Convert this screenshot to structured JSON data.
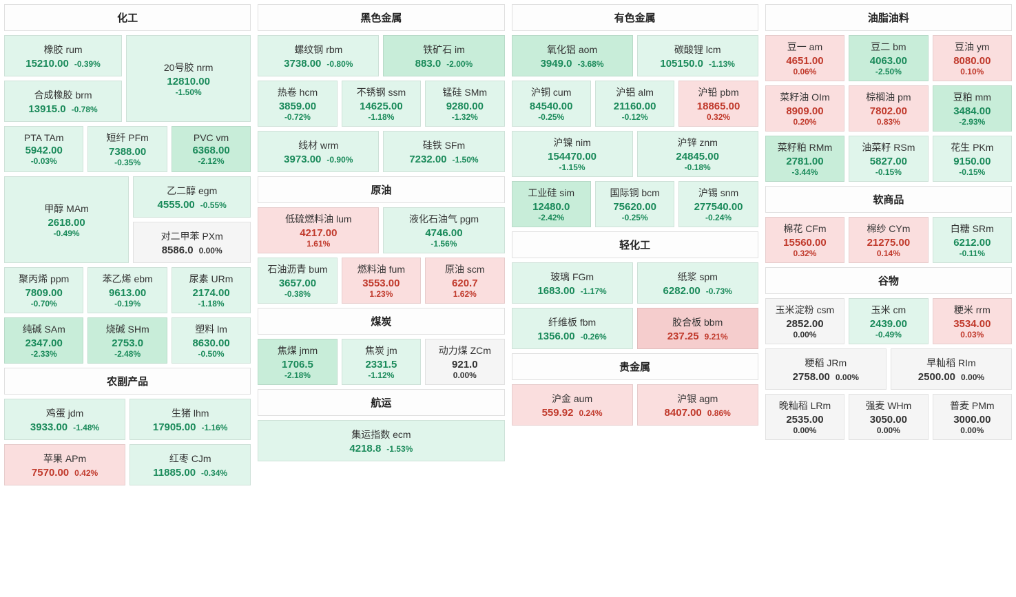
{
  "colors": {
    "down_bg": "#e0f5eb",
    "down_strong_bg": "#c8edd9",
    "up_bg": "#fadede",
    "up_strong_bg": "#f5cdcd",
    "flat_bg": "#f5f5f5",
    "down_text": "#1a8a5a",
    "up_text": "#c0392b",
    "flat_text": "#333333"
  },
  "columns": [
    {
      "sections": [
        {
          "title": "化工",
          "rows": [
            {
              "cells": [
                {
                  "type": "stack",
                  "cells": [
                    {
                      "name": "橡胶 rum",
                      "price": "15210.00",
                      "pct": "-0.39%",
                      "dir": "down",
                      "layout": "inline"
                    },
                    {
                      "name": "合成橡胶 brm",
                      "price": "13915.0",
                      "pct": "-0.78%",
                      "dir": "down",
                      "layout": "inline"
                    }
                  ]
                },
                {
                  "name": "20号胶 nrm",
                  "price": "12810.00",
                  "pct": "-1.50%",
                  "dir": "down",
                  "layout": "stacked"
                }
              ]
            },
            {
              "cells": [
                {
                  "name": "PTA TAm",
                  "price": "5942.00",
                  "pct": "-0.03%",
                  "dir": "down",
                  "layout": "stacked"
                },
                {
                  "name": "短纤 PFm",
                  "price": "7388.00",
                  "pct": "-0.35%",
                  "dir": "down",
                  "layout": "stacked"
                },
                {
                  "name": "PVC vm",
                  "price": "6368.00",
                  "pct": "-2.12%",
                  "dir": "down-strong",
                  "layout": "stacked"
                }
              ]
            },
            {
              "cells": [
                {
                  "name": "甲醇 MAm",
                  "price": "2618.00",
                  "pct": "-0.49%",
                  "dir": "down",
                  "layout": "stacked"
                },
                {
                  "type": "stack",
                  "cells": [
                    {
                      "name": "乙二醇 egm",
                      "price": "4555.00",
                      "pct": "-0.55%",
                      "dir": "down",
                      "layout": "inline"
                    },
                    {
                      "name": "对二甲苯 PXm",
                      "price": "8586.0",
                      "pct": "0.00%",
                      "dir": "flat",
                      "layout": "inline"
                    }
                  ]
                }
              ]
            },
            {
              "cells": [
                {
                  "name": "聚丙烯 ppm",
                  "price": "7809.00",
                  "pct": "-0.70%",
                  "dir": "down",
                  "layout": "stacked"
                },
                {
                  "name": "苯乙烯 ebm",
                  "price": "9613.00",
                  "pct": "-0.19%",
                  "dir": "down",
                  "layout": "stacked"
                },
                {
                  "name": "尿素 URm",
                  "price": "2174.00",
                  "pct": "-1.18%",
                  "dir": "down",
                  "layout": "stacked"
                }
              ]
            },
            {
              "cells": [
                {
                  "name": "纯碱 SAm",
                  "price": "2347.00",
                  "pct": "-2.33%",
                  "dir": "down-strong",
                  "layout": "stacked"
                },
                {
                  "name": "烧碱 SHm",
                  "price": "2753.0",
                  "pct": "-2.48%",
                  "dir": "down-strong",
                  "layout": "stacked"
                },
                {
                  "name": "塑料 lm",
                  "price": "8630.00",
                  "pct": "-0.50%",
                  "dir": "down",
                  "layout": "stacked"
                }
              ]
            }
          ]
        },
        {
          "title": "农副产品",
          "rows": [
            {
              "cells": [
                {
                  "name": "鸡蛋 jdm",
                  "price": "3933.00",
                  "pct": "-1.48%",
                  "dir": "down",
                  "layout": "inline"
                },
                {
                  "name": "生猪 lhm",
                  "price": "17905.00",
                  "pct": "-1.16%",
                  "dir": "down",
                  "layout": "inline"
                }
              ]
            },
            {
              "cells": [
                {
                  "name": "苹果 APm",
                  "price": "7570.00",
                  "pct": "0.42%",
                  "dir": "up",
                  "layout": "inline"
                },
                {
                  "name": "红枣 CJm",
                  "price": "11885.00",
                  "pct": "-0.34%",
                  "dir": "down",
                  "layout": "inline"
                }
              ]
            }
          ]
        }
      ]
    },
    {
      "sections": [
        {
          "title": "黑色金属",
          "rows": [
            {
              "cells": [
                {
                  "name": "螺纹钢 rbm",
                  "price": "3738.00",
                  "pct": "-0.80%",
                  "dir": "down",
                  "layout": "inline"
                },
                {
                  "name": "铁矿石 im",
                  "price": "883.0",
                  "pct": "-2.00%",
                  "dir": "down-strong",
                  "layout": "inline"
                }
              ]
            },
            {
              "cells": [
                {
                  "name": "热卷 hcm",
                  "price": "3859.00",
                  "pct": "-0.72%",
                  "dir": "down",
                  "layout": "stacked"
                },
                {
                  "name": "不锈钢 ssm",
                  "price": "14625.00",
                  "pct": "-1.18%",
                  "dir": "down",
                  "layout": "stacked"
                },
                {
                  "name": "锰硅 SMm",
                  "price": "9280.00",
                  "pct": "-1.32%",
                  "dir": "down",
                  "layout": "stacked"
                }
              ]
            },
            {
              "cells": [
                {
                  "name": "线材 wrm",
                  "price": "3973.00",
                  "pct": "-0.90%",
                  "dir": "down",
                  "layout": "inline"
                },
                {
                  "name": "硅铁 SFm",
                  "price": "7232.00",
                  "pct": "-1.50%",
                  "dir": "down",
                  "layout": "inline"
                }
              ]
            }
          ]
        },
        {
          "title": "原油",
          "rows": [
            {
              "cells": [
                {
                  "name": "低硫燃料油 lum",
                  "price": "4217.00",
                  "pct": "1.61%",
                  "dir": "up",
                  "layout": "stacked"
                },
                {
                  "name": "液化石油气 pgm",
                  "price": "4746.00",
                  "pct": "-1.56%",
                  "dir": "down",
                  "layout": "stacked"
                }
              ]
            },
            {
              "cells": [
                {
                  "name": "石油沥青 bum",
                  "price": "3657.00",
                  "pct": "-0.38%",
                  "dir": "down",
                  "layout": "stacked"
                },
                {
                  "name": "燃料油 fum",
                  "price": "3553.00",
                  "pct": "1.23%",
                  "dir": "up",
                  "layout": "stacked"
                },
                {
                  "name": "原油 scm",
                  "price": "620.7",
                  "pct": "1.62%",
                  "dir": "up",
                  "layout": "stacked"
                }
              ]
            }
          ]
        },
        {
          "title": "煤炭",
          "rows": [
            {
              "cells": [
                {
                  "name": "焦煤 jmm",
                  "price": "1706.5",
                  "pct": "-2.18%",
                  "dir": "down-strong",
                  "layout": "stacked"
                },
                {
                  "name": "焦炭 jm",
                  "price": "2331.5",
                  "pct": "-1.12%",
                  "dir": "down",
                  "layout": "stacked"
                },
                {
                  "name": "动力煤 ZCm",
                  "price": "921.0",
                  "pct": "0.00%",
                  "dir": "flat",
                  "layout": "stacked"
                }
              ]
            }
          ]
        },
        {
          "title": "航运",
          "rows": [
            {
              "cells": [
                {
                  "name": "集运指数 ecm",
                  "price": "4218.8",
                  "pct": "-1.53%",
                  "dir": "down",
                  "layout": "inline"
                }
              ]
            }
          ]
        }
      ]
    },
    {
      "sections": [
        {
          "title": "有色金属",
          "rows": [
            {
              "cells": [
                {
                  "name": "氧化铝 aom",
                  "price": "3949.0",
                  "pct": "-3.68%",
                  "dir": "down-strong",
                  "layout": "inline"
                },
                {
                  "name": "碳酸锂 lcm",
                  "price": "105150.0",
                  "pct": "-1.13%",
                  "dir": "down",
                  "layout": "inline"
                }
              ]
            },
            {
              "cells": [
                {
                  "name": "沪铜 cum",
                  "price": "84540.00",
                  "pct": "-0.25%",
                  "dir": "down",
                  "layout": "stacked"
                },
                {
                  "name": "沪铝 alm",
                  "price": "21160.00",
                  "pct": "-0.12%",
                  "dir": "down",
                  "layout": "stacked"
                },
                {
                  "name": "沪铅 pbm",
                  "price": "18865.00",
                  "pct": "0.32%",
                  "dir": "up",
                  "layout": "stacked"
                }
              ]
            },
            {
              "cells": [
                {
                  "name": "沪镍 nim",
                  "price": "154470.00",
                  "pct": "-1.15%",
                  "dir": "down",
                  "layout": "stacked"
                },
                {
                  "name": "沪锌 znm",
                  "price": "24845.00",
                  "pct": "-0.18%",
                  "dir": "down",
                  "layout": "stacked"
                }
              ]
            },
            {
              "cells": [
                {
                  "name": "工业硅 sim",
                  "price": "12480.0",
                  "pct": "-2.42%",
                  "dir": "down-strong",
                  "layout": "stacked"
                },
                {
                  "name": "国际铜 bcm",
                  "price": "75620.00",
                  "pct": "-0.25%",
                  "dir": "down",
                  "layout": "stacked"
                },
                {
                  "name": "沪锡 snm",
                  "price": "277540.00",
                  "pct": "-0.24%",
                  "dir": "down",
                  "layout": "stacked"
                }
              ]
            }
          ]
        },
        {
          "title": "轻化工",
          "rows": [
            {
              "cells": [
                {
                  "name": "玻璃 FGm",
                  "price": "1683.00",
                  "pct": "-1.17%",
                  "dir": "down",
                  "layout": "inline"
                },
                {
                  "name": "纸浆 spm",
                  "price": "6282.00",
                  "pct": "-0.73%",
                  "dir": "down",
                  "layout": "inline"
                }
              ]
            },
            {
              "cells": [
                {
                  "name": "纤维板 fbm",
                  "price": "1356.00",
                  "pct": "-0.26%",
                  "dir": "down",
                  "layout": "inline"
                },
                {
                  "name": "胶合板 bbm",
                  "price": "237.25",
                  "pct": "9.21%",
                  "dir": "up-strong",
                  "layout": "inline"
                }
              ]
            }
          ]
        },
        {
          "title": "贵金属",
          "rows": [
            {
              "cells": [
                {
                  "name": "沪金 aum",
                  "price": "559.92",
                  "pct": "0.24%",
                  "dir": "up",
                  "layout": "inline"
                },
                {
                  "name": "沪银 agm",
                  "price": "8407.00",
                  "pct": "0.86%",
                  "dir": "up",
                  "layout": "inline"
                }
              ]
            }
          ]
        }
      ]
    },
    {
      "sections": [
        {
          "title": "油脂油料",
          "rows": [
            {
              "cells": [
                {
                  "name": "豆一 am",
                  "price": "4651.00",
                  "pct": "0.06%",
                  "dir": "up",
                  "layout": "stacked"
                },
                {
                  "name": "豆二 bm",
                  "price": "4063.00",
                  "pct": "-2.50%",
                  "dir": "down-strong",
                  "layout": "stacked"
                },
                {
                  "name": "豆油 ym",
                  "price": "8080.00",
                  "pct": "0.10%",
                  "dir": "up",
                  "layout": "stacked"
                }
              ]
            },
            {
              "cells": [
                {
                  "name": "菜籽油 OIm",
                  "price": "8909.00",
                  "pct": "0.20%",
                  "dir": "up",
                  "layout": "stacked"
                },
                {
                  "name": "棕榈油 pm",
                  "price": "7802.00",
                  "pct": "0.83%",
                  "dir": "up",
                  "layout": "stacked"
                },
                {
                  "name": "豆粕 mm",
                  "price": "3484.00",
                  "pct": "-2.93%",
                  "dir": "down-strong",
                  "layout": "stacked"
                }
              ]
            },
            {
              "cells": [
                {
                  "name": "菜籽粕 RMm",
                  "price": "2781.00",
                  "pct": "-3.44%",
                  "dir": "down-strong",
                  "layout": "stacked"
                },
                {
                  "name": "油菜籽 RSm",
                  "price": "5827.00",
                  "pct": "-0.15%",
                  "dir": "down",
                  "layout": "stacked"
                },
                {
                  "name": "花生 PKm",
                  "price": "9150.00",
                  "pct": "-0.15%",
                  "dir": "down",
                  "layout": "stacked"
                }
              ]
            }
          ]
        },
        {
          "title": "软商品",
          "rows": [
            {
              "cells": [
                {
                  "name": "棉花 CFm",
                  "price": "15560.00",
                  "pct": "0.32%",
                  "dir": "up",
                  "layout": "stacked"
                },
                {
                  "name": "棉纱 CYm",
                  "price": "21275.00",
                  "pct": "0.14%",
                  "dir": "up",
                  "layout": "stacked"
                },
                {
                  "name": "白糖 SRm",
                  "price": "6212.00",
                  "pct": "-0.11%",
                  "dir": "down",
                  "layout": "stacked"
                }
              ]
            }
          ]
        },
        {
          "title": "谷物",
          "rows": [
            {
              "cells": [
                {
                  "name": "玉米淀粉 csm",
                  "price": "2852.00",
                  "pct": "0.00%",
                  "dir": "flat",
                  "layout": "stacked"
                },
                {
                  "name": "玉米 cm",
                  "price": "2439.00",
                  "pct": "-0.49%",
                  "dir": "down",
                  "layout": "stacked"
                },
                {
                  "name": "粳米 rrm",
                  "price": "3534.00",
                  "pct": "0.03%",
                  "dir": "up",
                  "layout": "stacked"
                }
              ]
            },
            {
              "cells": [
                {
                  "name": "粳稻 JRm",
                  "price": "2758.00",
                  "pct": "0.00%",
                  "dir": "flat",
                  "layout": "inline"
                },
                {
                  "name": "早籼稻 RIm",
                  "price": "2500.00",
                  "pct": "0.00%",
                  "dir": "flat",
                  "layout": "inline"
                }
              ]
            },
            {
              "cells": [
                {
                  "name": "晚籼稻 LRm",
                  "price": "2535.00",
                  "pct": "0.00%",
                  "dir": "flat",
                  "layout": "stacked"
                },
                {
                  "name": "强麦 WHm",
                  "price": "3050.00",
                  "pct": "0.00%",
                  "dir": "flat",
                  "layout": "stacked"
                },
                {
                  "name": "普麦 PMm",
                  "price": "3000.00",
                  "pct": "0.00%",
                  "dir": "flat",
                  "layout": "stacked"
                }
              ]
            }
          ]
        }
      ]
    }
  ]
}
